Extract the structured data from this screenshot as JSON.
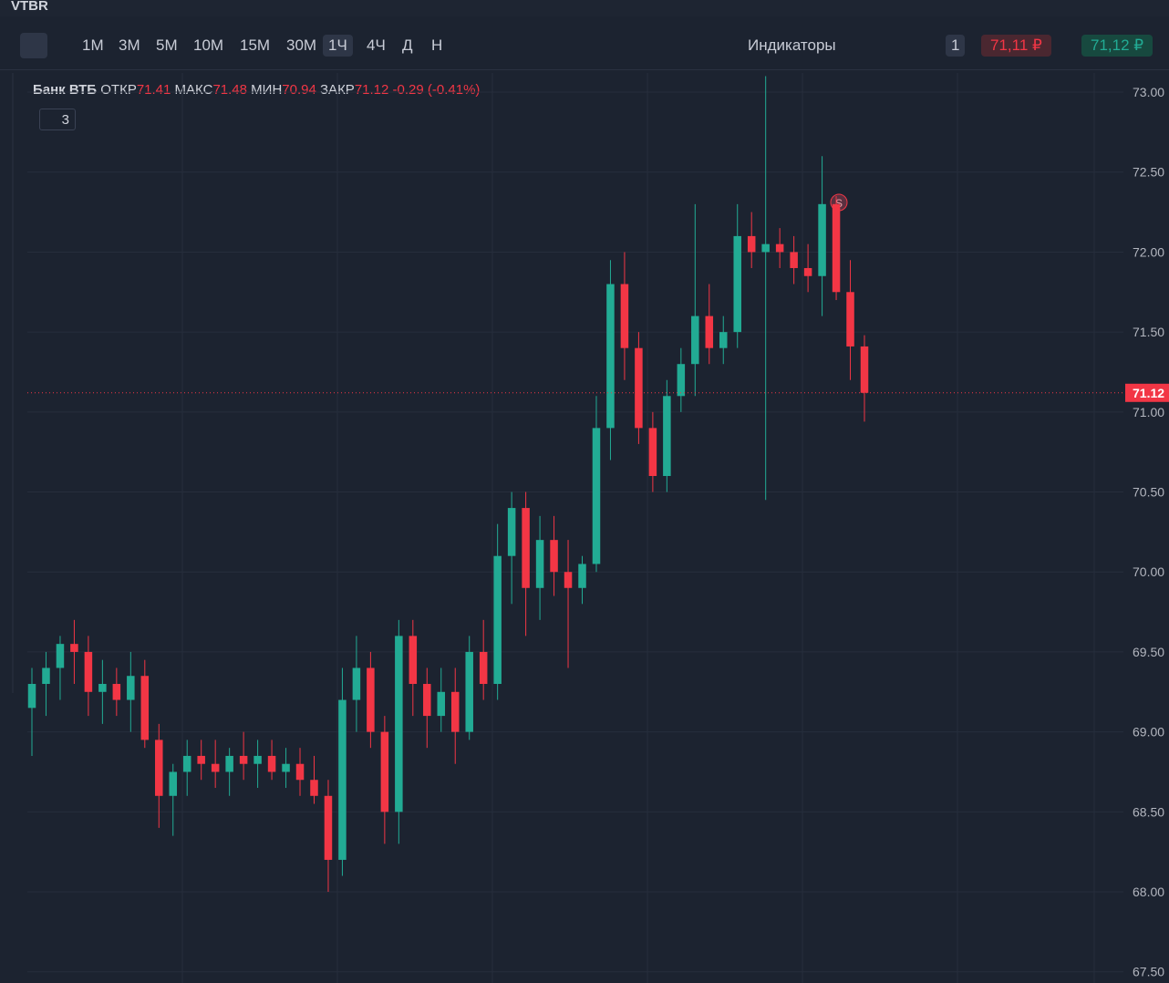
{
  "toolbar": {
    "ticker": "VTBR",
    "intervals": [
      "1М",
      "3М",
      "5М",
      "10М",
      "15М",
      "30М",
      "1Ч",
      "4Ч",
      "Д",
      "Н"
    ],
    "indicators": "Индикаторы",
    "quantity": "1",
    "sell": "71,11 ₽",
    "buy": "71,12 ₽"
  },
  "legend": {
    "name": "Банк ВТБ",
    "open": "ОТКР",
    "high": "МАКС",
    "low": "МИН",
    "close": "ЗАКР",
    "change": "-0.29 (-0.41%)",
    "collapsed_count": "3"
  },
  "chart_data": {
    "type": "candlestick",
    "marker": "S",
    "up_color": "#22ab94",
    "down_color": "#f23645",
    "ylim": [
      67.43,
      73.12
    ],
    "yticks": [
      {
        "value": 67.5,
        "label": "67.50"
      },
      {
        "value": 68,
        "label": "68.00"
      },
      {
        "value": 68.5,
        "label": "68.50"
      },
      {
        "value": 69,
        "label": "69.00"
      },
      {
        "value": 69.5,
        "label": "69.50"
      },
      {
        "value": 70,
        "label": "70.00"
      },
      {
        "value": 70.5,
        "label": "70.50"
      },
      {
        "value": 71,
        "label": "71.00"
      },
      {
        "value": 71.5,
        "label": "71.50"
      },
      {
        "value": 72,
        "label": "72.00"
      },
      {
        "value": 72.5,
        "label": "72.50"
      },
      {
        "value": 73,
        "label": "73.00"
      }
    ],
    "candles": [
      [
        69.15,
        69.4,
        68.85,
        69.3
      ],
      [
        69.3,
        69.5,
        69.1,
        69.4
      ],
      [
        69.4,
        69.6,
        69.2,
        69.55
      ],
      [
        69.55,
        69.7,
        69.3,
        69.5
      ],
      [
        69.5,
        69.6,
        69.1,
        69.25
      ],
      [
        69.25,
        69.45,
        69.05,
        69.3
      ],
      [
        69.3,
        69.4,
        69.1,
        69.2
      ],
      [
        69.2,
        69.5,
        69.0,
        69.35
      ],
      [
        69.35,
        69.45,
        68.9,
        68.95
      ],
      [
        68.95,
        69.05,
        68.4,
        68.6
      ],
      [
        68.6,
        68.8,
        68.35,
        68.75
      ],
      [
        68.75,
        68.95,
        68.6,
        68.85
      ],
      [
        68.85,
        68.95,
        68.7,
        68.8
      ],
      [
        68.8,
        68.95,
        68.65,
        68.75
      ],
      [
        68.75,
        68.9,
        68.6,
        68.85
      ],
      [
        68.85,
        69.0,
        68.7,
        68.8
      ],
      [
        68.8,
        68.95,
        68.65,
        68.85
      ],
      [
        68.85,
        68.95,
        68.7,
        68.75
      ],
      [
        68.75,
        68.9,
        68.65,
        68.8
      ],
      [
        68.8,
        68.9,
        68.6,
        68.7
      ],
      [
        68.7,
        68.85,
        68.55,
        68.6
      ],
      [
        68.6,
        68.7,
        68.0,
        68.2
      ],
      [
        68.2,
        69.4,
        68.1,
        69.2
      ],
      [
        69.2,
        69.6,
        69.0,
        69.4
      ],
      [
        69.4,
        69.5,
        68.9,
        69.0
      ],
      [
        69.0,
        69.1,
        68.3,
        68.5
      ],
      [
        68.5,
        69.7,
        68.3,
        69.6
      ],
      [
        69.6,
        69.7,
        69.1,
        69.3
      ],
      [
        69.3,
        69.4,
        68.9,
        69.1
      ],
      [
        69.1,
        69.4,
        69.0,
        69.25
      ],
      [
        69.25,
        69.4,
        68.8,
        69.0
      ],
      [
        69.0,
        69.6,
        68.95,
        69.5
      ],
      [
        69.5,
        69.7,
        69.2,
        69.3
      ],
      [
        69.3,
        70.3,
        69.2,
        70.1
      ],
      [
        70.1,
        70.5,
        69.8,
        70.4
      ],
      [
        70.4,
        70.5,
        69.6,
        69.9
      ],
      [
        69.9,
        70.35,
        69.7,
        70.2
      ],
      [
        70.2,
        70.35,
        69.85,
        70.0
      ],
      [
        70.0,
        70.2,
        69.4,
        69.9
      ],
      [
        69.9,
        70.1,
        69.8,
        70.05
      ],
      [
        70.05,
        71.1,
        70.0,
        70.9
      ],
      [
        70.9,
        71.95,
        70.7,
        71.8
      ],
      [
        71.8,
        72.0,
        71.2,
        71.4
      ],
      [
        71.4,
        71.5,
        70.8,
        70.9
      ],
      [
        70.9,
        71.0,
        70.5,
        70.6
      ],
      [
        70.6,
        71.2,
        70.5,
        71.1
      ],
      [
        71.1,
        71.4,
        71.0,
        71.3
      ],
      [
        71.3,
        72.3,
        71.1,
        71.6
      ],
      [
        71.6,
        71.8,
        71.3,
        71.4
      ],
      [
        71.4,
        71.6,
        71.3,
        71.5
      ],
      [
        71.5,
        72.3,
        71.4,
        72.1
      ],
      [
        72.1,
        72.25,
        71.9,
        72.0
      ],
      [
        72.0,
        73.1,
        70.45,
        72.05
      ],
      [
        72.05,
        72.15,
        71.9,
        72.0
      ],
      [
        72.0,
        72.1,
        71.8,
        71.9
      ],
      [
        71.9,
        72.05,
        71.75,
        71.85
      ],
      [
        71.85,
        72.6,
        71.6,
        72.3
      ],
      [
        72.3,
        72.35,
        71.7,
        71.75
      ],
      [
        71.75,
        71.95,
        71.2,
        71.41
      ],
      [
        71.41,
        71.48,
        70.94,
        71.12
      ]
    ]
  }
}
